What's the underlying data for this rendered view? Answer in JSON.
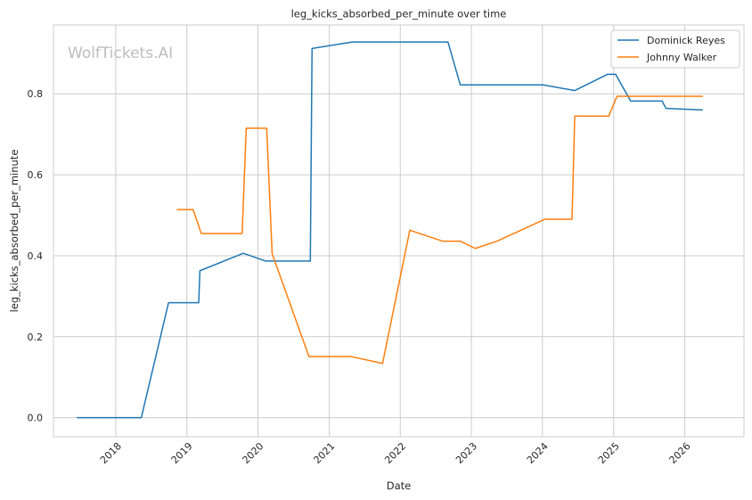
{
  "watermark": "WolfTickets.AI",
  "chart_data": {
    "type": "line",
    "title": "leg_kicks_absorbed_per_minute over time",
    "xlabel": "Date",
    "ylabel": "leg_kicks_absorbed_per_minute",
    "xlim": [
      "2017-02-15",
      "2026-11-01"
    ],
    "ylim": [
      -0.047,
      0.97
    ],
    "x_ticks": [
      "2018-01-01",
      "2019-01-01",
      "2020-01-01",
      "2021-01-01",
      "2022-01-01",
      "2023-01-01",
      "2024-01-01",
      "2025-01-01",
      "2026-01-01"
    ],
    "x_tick_labels": [
      "2018",
      "2019",
      "2020",
      "2021",
      "2022",
      "2023",
      "2024",
      "2025",
      "2026"
    ],
    "y_ticks": [
      0.0,
      0.2,
      0.4,
      0.6,
      0.8
    ],
    "y_tick_labels": [
      "0.0",
      "0.2",
      "0.4",
      "0.6",
      "0.8"
    ],
    "grid": true,
    "legend_position": "top-right",
    "series": [
      {
        "name": "Dominick Reyes",
        "color": "#1f77b4",
        "points": [
          [
            "2017-06-15",
            0.0
          ],
          [
            "2018-05-12",
            0.0
          ],
          [
            "2018-09-29",
            0.284
          ],
          [
            "2019-03-03",
            0.284
          ],
          [
            "2019-03-09",
            0.363
          ],
          [
            "2019-10-18",
            0.406
          ],
          [
            "2020-02-08",
            0.387
          ],
          [
            "2020-09-26",
            0.387
          ],
          [
            "2020-10-05",
            0.912
          ],
          [
            "2021-05-01",
            0.928
          ],
          [
            "2022-09-03",
            0.928
          ],
          [
            "2022-11-05",
            0.822
          ],
          [
            "2024-01-05",
            0.822
          ],
          [
            "2024-06-15",
            0.808
          ],
          [
            "2024-11-30",
            0.848
          ],
          [
            "2025-01-11",
            0.848
          ],
          [
            "2025-03-29",
            0.782
          ],
          [
            "2025-09-06",
            0.782
          ],
          [
            "2025-09-27",
            0.764
          ],
          [
            "2026-04-04",
            0.76
          ]
        ]
      },
      {
        "name": "Johnny Walker",
        "color": "#ff7f0e",
        "points": [
          [
            "2018-11-10",
            0.514
          ],
          [
            "2019-02-02",
            0.514
          ],
          [
            "2019-03-16",
            0.455
          ],
          [
            "2019-10-12",
            0.455
          ],
          [
            "2019-11-02",
            0.715
          ],
          [
            "2020-02-15",
            0.715
          ],
          [
            "2020-03-14",
            0.405
          ],
          [
            "2020-09-19",
            0.151
          ],
          [
            "2021-04-24",
            0.151
          ],
          [
            "2021-10-02",
            0.134
          ],
          [
            "2022-02-19",
            0.463
          ],
          [
            "2022-08-06",
            0.436
          ],
          [
            "2022-11-05",
            0.436
          ],
          [
            "2023-01-21",
            0.418
          ],
          [
            "2023-05-13",
            0.436
          ],
          [
            "2024-01-13",
            0.49
          ],
          [
            "2024-06-01",
            0.49
          ],
          [
            "2024-06-15",
            0.745
          ],
          [
            "2024-12-07",
            0.745
          ],
          [
            "2025-01-18",
            0.794
          ],
          [
            "2026-04-04",
            0.794
          ]
        ]
      }
    ]
  }
}
